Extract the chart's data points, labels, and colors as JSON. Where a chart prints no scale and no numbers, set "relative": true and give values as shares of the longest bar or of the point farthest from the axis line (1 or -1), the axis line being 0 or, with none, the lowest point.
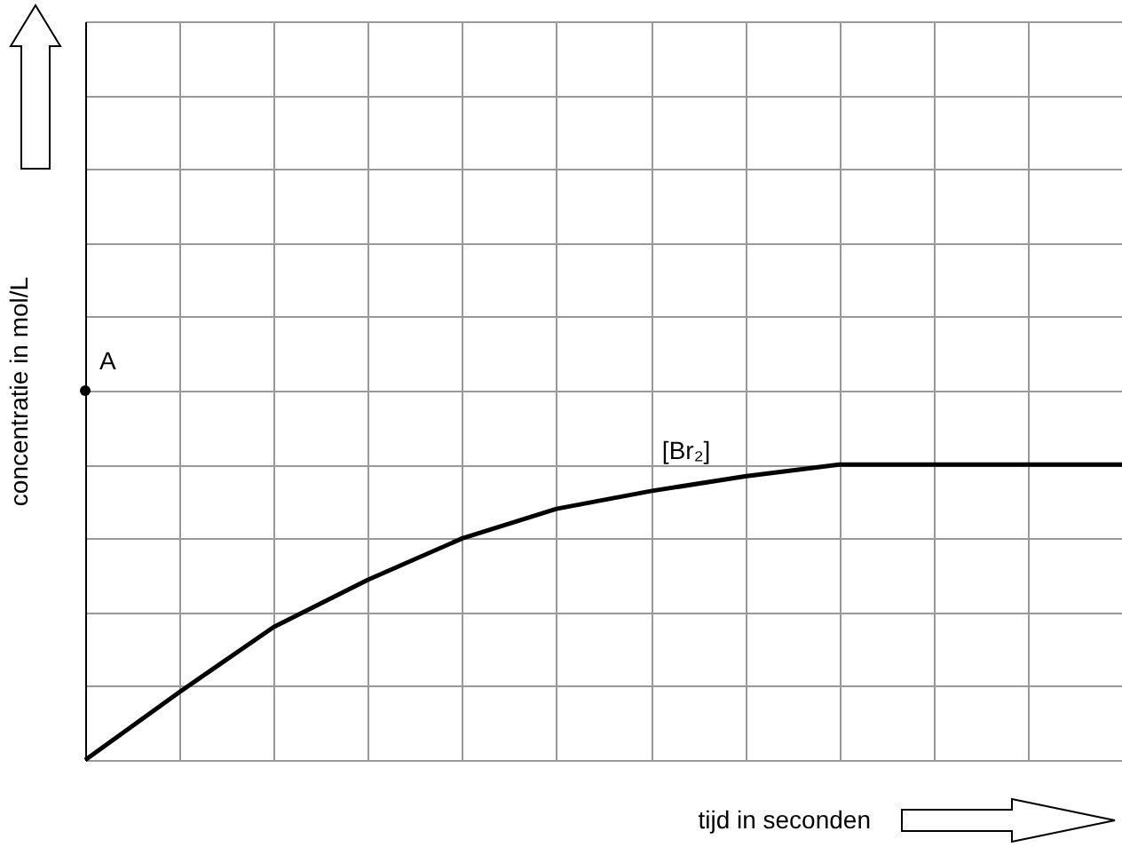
{
  "chart_data": {
    "type": "line",
    "relative": true,
    "xlabel": "tijd in seconden",
    "ylabel": "concentratie in mol/L",
    "categories": [
      null,
      null,
      null,
      null,
      null,
      null,
      null,
      null,
      null,
      null,
      null,
      null
    ],
    "grid": true,
    "series": [
      {
        "name": "[Br₂]",
        "color": "#000000",
        "values": [
          0,
          0.23,
          0.45,
          0.61,
          0.75,
          0.85,
          0.91,
          0.96,
          1,
          1,
          1,
          1
        ]
      }
    ],
    "annotations": [
      "A"
    ]
  }
}
